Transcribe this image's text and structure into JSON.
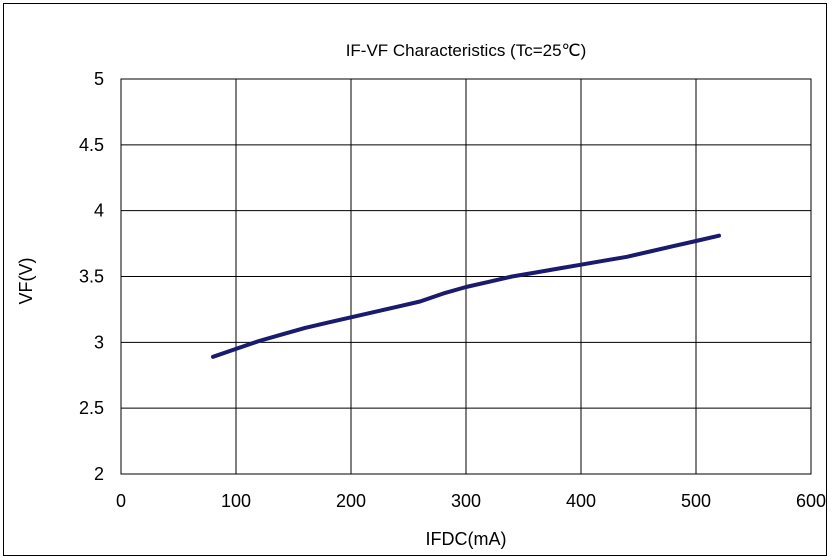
{
  "chart_data": {
    "type": "line",
    "title": "IF-VF Characteristics (Tc=25℃)",
    "xlabel": "IFDC(mA)",
    "ylabel": "VF(V)",
    "xlim": [
      0,
      600
    ],
    "ylim": [
      2,
      5
    ],
    "x_ticks": [
      "0",
      "100",
      "200",
      "300",
      "400",
      "500",
      "600"
    ],
    "y_ticks": [
      "2",
      "2.5",
      "3",
      "3.5",
      "4",
      "4.5",
      "5"
    ],
    "grid": true,
    "series": [
      {
        "color": "#1a1a6e",
        "x": [
          80,
          100,
          120,
          140,
          160,
          180,
          200,
          220,
          240,
          260,
          280,
          300,
          320,
          340,
          360,
          380,
          400,
          420,
          440,
          460,
          480,
          500,
          520
        ],
        "y": [
          2.89,
          2.95,
          3.01,
          3.06,
          3.11,
          3.15,
          3.19,
          3.23,
          3.27,
          3.31,
          3.37,
          3.42,
          3.46,
          3.5,
          3.53,
          3.56,
          3.59,
          3.62,
          3.65,
          3.69,
          3.73,
          3.77,
          3.81
        ]
      }
    ]
  }
}
